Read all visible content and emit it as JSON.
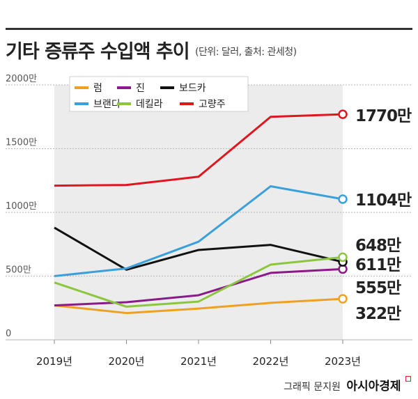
{
  "header": {
    "title": "기타 증류주 수입액 추이",
    "subtitle": "(단위: 달러, 출처: 관세청)"
  },
  "credit": {
    "author": "그래픽 문지원",
    "brand": "아시아경제"
  },
  "colors": {
    "럼": "#f0a020",
    "진": "#8a1a8a",
    "보드카": "#111111",
    "브랜디": "#3aa0dc",
    "데킬라": "#8cc63e",
    "고량주": "#e0161e"
  },
  "chart_data": {
    "type": "line",
    "x": [
      "2019년",
      "2020년",
      "2021년",
      "2022년",
      "2023년"
    ],
    "ylim": [
      0,
      2000
    ],
    "y_ticks": [
      {
        "value": 0,
        "label": "0"
      },
      {
        "value": 500,
        "label": "500만"
      },
      {
        "value": 1000,
        "label": "1000만"
      },
      {
        "value": 1500,
        "label": "1500만"
      },
      {
        "value": 2000,
        "label": "2000만"
      }
    ],
    "legend_position": "top",
    "series": [
      {
        "name": "럼",
        "values": [
          270,
          210,
          245,
          290,
          322
        ],
        "end_label": "322만"
      },
      {
        "name": "진",
        "values": [
          270,
          295,
          350,
          525,
          555
        ],
        "end_label": "555만"
      },
      {
        "name": "보드카",
        "values": [
          880,
          550,
          705,
          745,
          611
        ],
        "end_label": "611만"
      },
      {
        "name": "브랜디",
        "values": [
          500,
          560,
          770,
          1205,
          1104
        ],
        "end_label": "1104만"
      },
      {
        "name": "데킬라",
        "values": [
          450,
          260,
          300,
          590,
          648
        ],
        "end_label": "648만"
      },
      {
        "name": "고량주",
        "values": [
          1210,
          1215,
          1280,
          1750,
          1770
        ],
        "end_label": "1770만"
      }
    ]
  }
}
